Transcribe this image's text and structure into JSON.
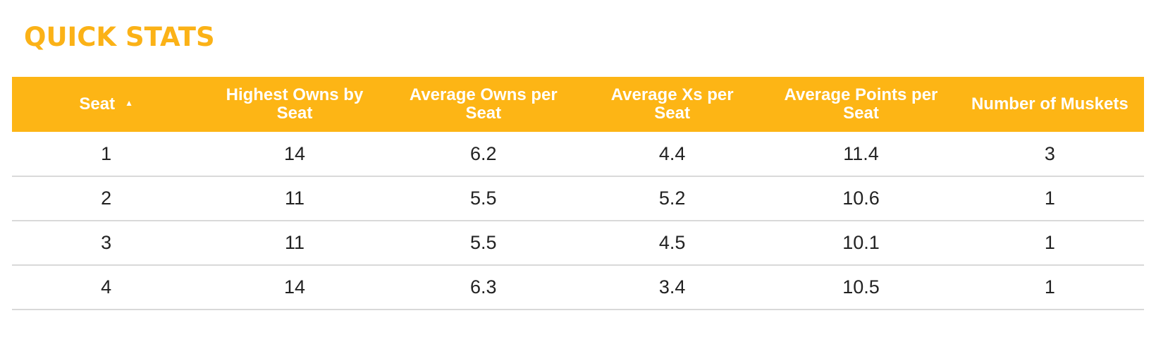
{
  "title": "QUICK STATS",
  "table": {
    "sort_icon": "sort-ascending-icon",
    "headers": [
      "Seat",
      "Highest Owns by Seat",
      "Average Owns per Seat",
      "Average Xs per Seat",
      "Average Points per Seat",
      "Number of Muskets"
    ],
    "rows": [
      [
        "1",
        "14",
        "6.2",
        "4.4",
        "11.4",
        "3"
      ],
      [
        "2",
        "11",
        "5.5",
        "5.2",
        "10.6",
        "1"
      ],
      [
        "3",
        "11",
        "5.5",
        "4.5",
        "10.1",
        "1"
      ],
      [
        "4",
        "14",
        "6.3",
        "3.4",
        "10.5",
        "1"
      ]
    ]
  },
  "colors": {
    "accent": "#fdb515",
    "title": "#fbb217",
    "row_divider": "#d9d9d9"
  }
}
